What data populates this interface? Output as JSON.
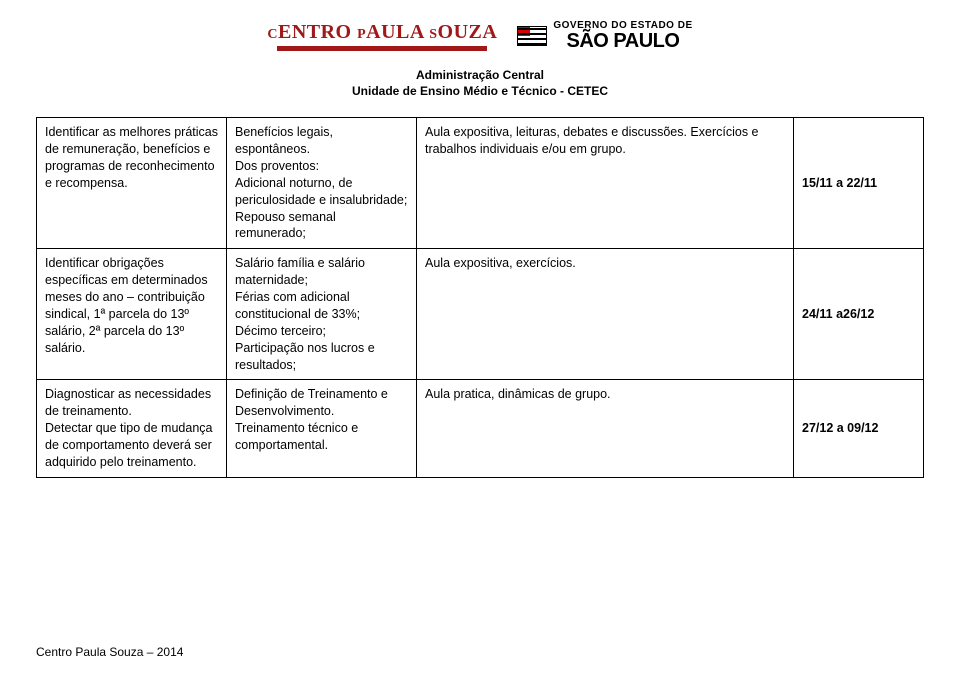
{
  "header": {
    "logo_cps": "CENTRO PAULA SOUZA",
    "logo_sp_top": "GOVERNO DO ESTADO DE",
    "logo_sp_bottom": "SÃO PAULO",
    "line1": "Administração Central",
    "line2": "Unidade de Ensino Médio e Técnico - CETEC"
  },
  "rows": [
    {
      "c1": "Identificar as melhores práticas de remuneração, benefícios e programas de reconhecimento e recompensa.",
      "c2": "Benefícios legais, espontâneos.\nDos proventos:\nAdicional noturno, de periculosidade e insalubridade;\nRepouso semanal remunerado;",
      "c3": "Aula expositiva, leituras, debates e discussões. Exercícios e trabalhos individuais e/ou em grupo.",
      "c4": "15/11  a  22/11"
    },
    {
      "c1": "Identificar obrigações específicas em determinados meses do ano – contribuição sindical, 1ª parcela do 13º salário, 2ª parcela do 13º salário.",
      "c2": "Salário família e salário maternidade;\nFérias com adicional constitucional de 33%;\nDécimo terceiro;\nParticipação nos lucros e resultados;",
      "c3": "Aula expositiva, exercícios.",
      "c4": "24/11  a26/12"
    },
    {
      "c1": "Diagnosticar as necessidades de treinamento.\nDetectar que tipo de mudança de comportamento deverá ser adquirido pelo treinamento.",
      "c2": "Definição de Treinamento e Desenvolvimento.\nTreinamento técnico e comportamental.",
      "c3": "Aula pratica, dinâmicas de grupo.",
      "c4": "27/12  a  09/12"
    }
  ],
  "footer": "Centro Paula Souza – 2014"
}
